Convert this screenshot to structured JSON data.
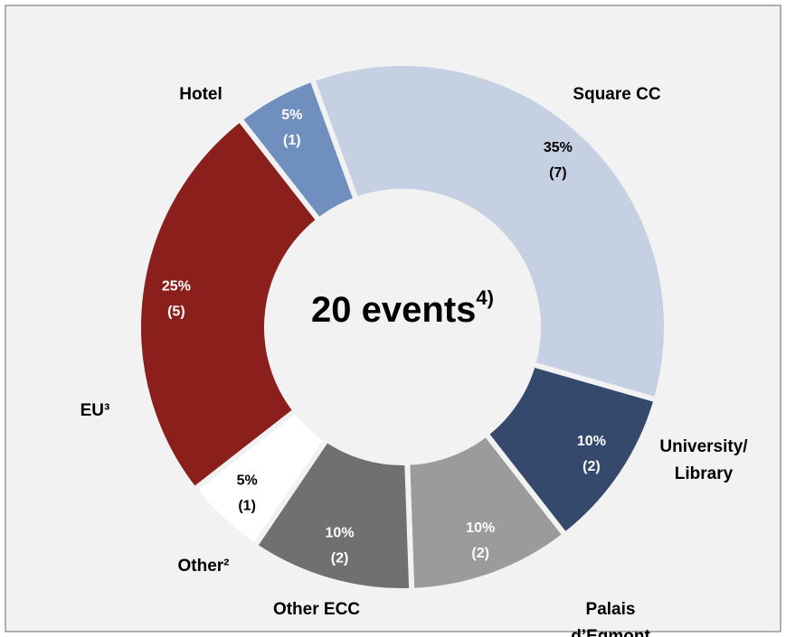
{
  "chart_data": {
    "type": "donut",
    "center_label": "20 events",
    "center_sup": "4)",
    "categories": [
      "Square CC",
      "University/ Library",
      "Palais d’Egmont",
      "Other ECC",
      "Other²",
      "EU³",
      "Hotel"
    ],
    "values": [
      35,
      10,
      10,
      10,
      5,
      25,
      5
    ],
    "value_labels": [
      "35%",
      "10%",
      "10%",
      "10%",
      "5%",
      "25%",
      "5%"
    ],
    "counts": [
      7,
      2,
      2,
      2,
      1,
      5,
      1
    ],
    "count_labels": [
      "(7)",
      "(2)",
      "(2)",
      "(2)",
      "(1)",
      "(5)",
      "(1)"
    ],
    "colors": [
      "#c5d0e3",
      "#34496b",
      "#9b9b9b",
      "#707070",
      "#ffffff",
      "#8a1f1c",
      "#6f8fbf"
    ]
  }
}
